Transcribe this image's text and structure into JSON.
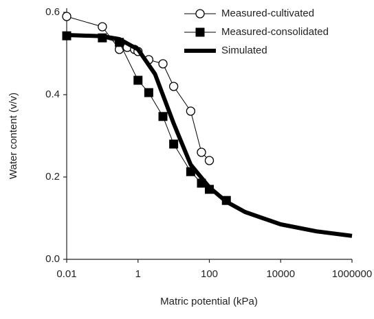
{
  "chart_data": {
    "type": "line",
    "x_label": "Matric potential (kPa)",
    "y_label": "Water content (v/v)",
    "xlim": [
      0.01,
      1000000
    ],
    "xticks": [
      0.01,
      1,
      100,
      10000,
      1000000
    ],
    "xscale": "log",
    "ylim": [
      0,
      0.6
    ],
    "yticks": [
      {
        "value": 0,
        "label": "0.0"
      },
      {
        "value": 0.2,
        "label": "0.2"
      },
      {
        "value": 0.4,
        "label": "0.4"
      },
      {
        "value": 0.6,
        "label": "0.6"
      }
    ],
    "legend": "top-right",
    "series": [
      {
        "name": "Measured-cultivated",
        "color": "#000000",
        "marker": "open-circle",
        "line_width": 1,
        "x": [
          0.01,
          0.1,
          0.3,
          0.5,
          0.8,
          1,
          2,
          5,
          10,
          30,
          60,
          100
        ],
        "values": [
          0.59,
          0.565,
          0.51,
          0.515,
          0.51,
          0.505,
          0.485,
          0.475,
          0.42,
          0.36,
          0.26,
          0.24
        ]
      },
      {
        "name": "Measured-consolidated",
        "color": "#000000",
        "marker": "filled-square",
        "line_width": 1,
        "x": [
          0.01,
          0.1,
          0.3,
          1,
          2,
          5,
          10,
          30,
          60,
          100,
          300
        ],
        "values": [
          0.543,
          0.538,
          0.527,
          0.435,
          0.405,
          0.347,
          0.28,
          0.213,
          0.185,
          0.17,
          0.143
        ]
      },
      {
        "name": "Simulated",
        "color": "#000000",
        "marker": "none",
        "line_width": 6,
        "x": [
          0.01,
          0.1,
          0.3,
          1,
          3,
          10,
          30,
          100,
          300,
          1000,
          10000,
          100000,
          1000000
        ],
        "values": [
          0.545,
          0.542,
          0.535,
          0.51,
          0.45,
          0.33,
          0.23,
          0.175,
          0.14,
          0.115,
          0.085,
          0.068,
          0.057
        ]
      }
    ]
  }
}
